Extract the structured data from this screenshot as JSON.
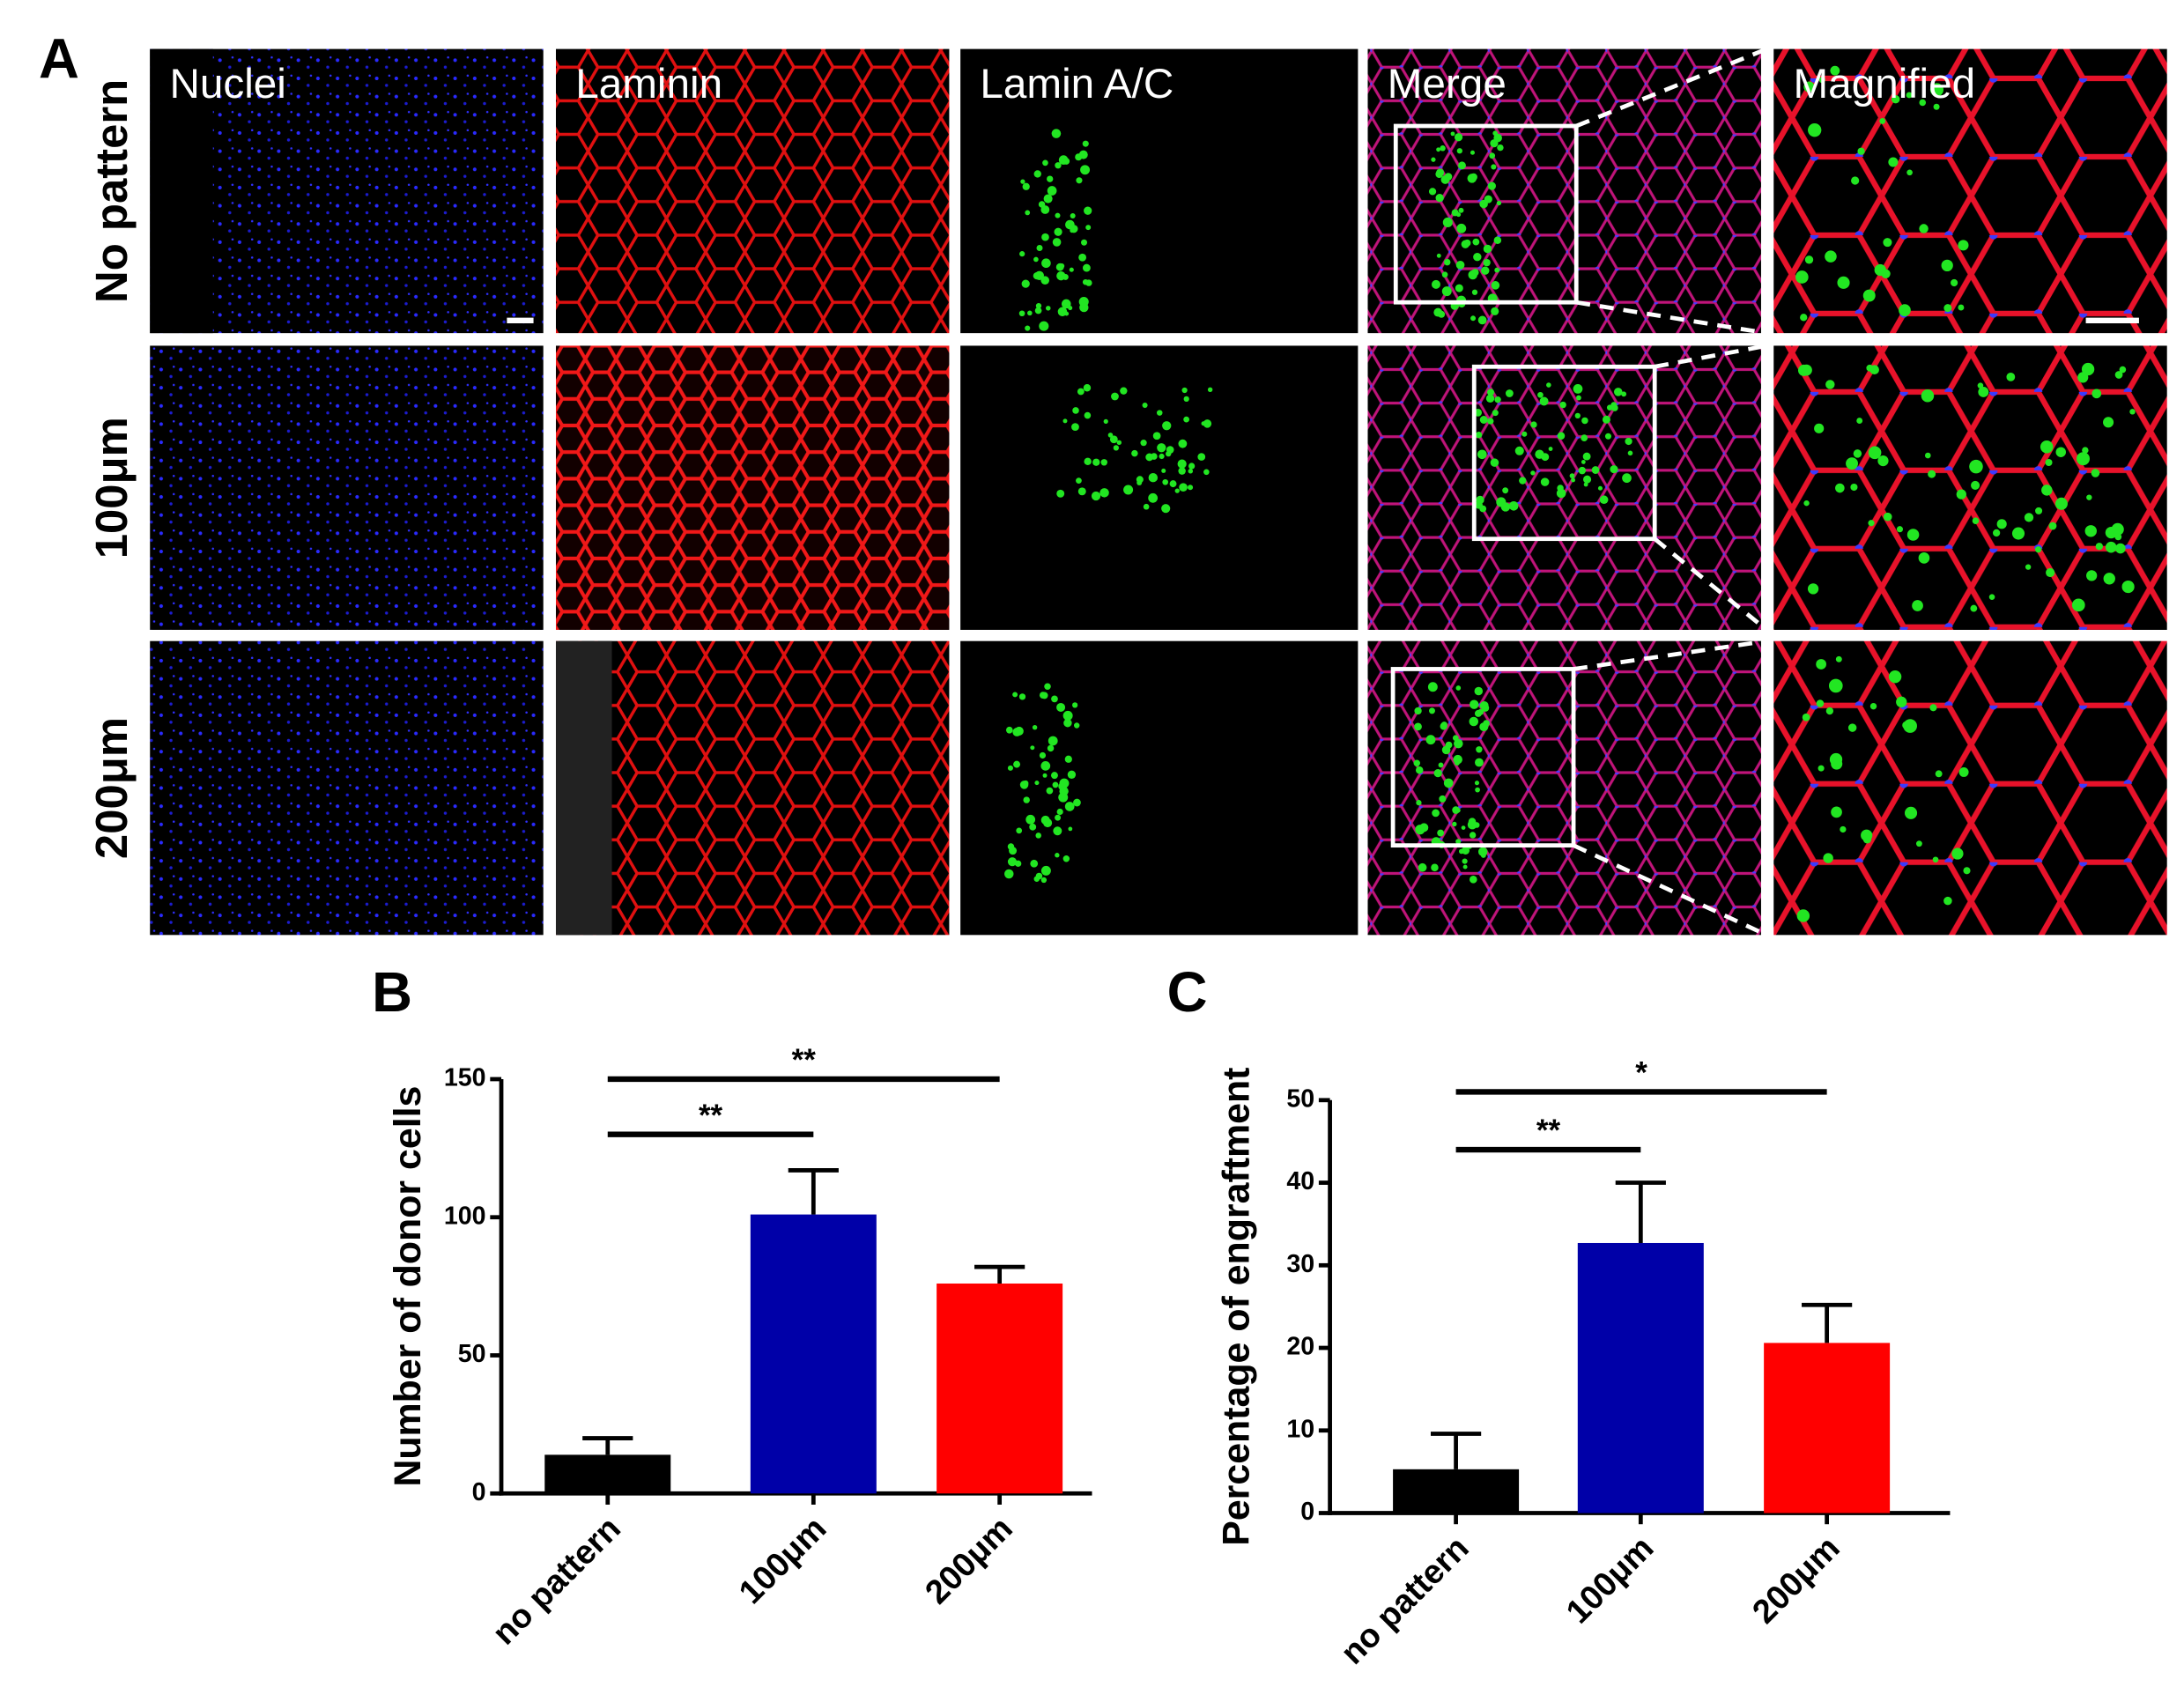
{
  "panel_a": {
    "panel_label": "A",
    "columns": [
      "Nuclei",
      "Laminin",
      "Lamin A/C",
      "Merge",
      "Magnified"
    ],
    "rows": [
      "No pattern",
      "100μm",
      "200μm"
    ]
  },
  "chart_data": [
    {
      "type": "bar",
      "panel_label": "B",
      "y_label": "Number of donor cells",
      "categories": [
        "no pattern",
        "100μm",
        "200μm"
      ],
      "colors": [
        "#000000",
        "#0000a8",
        "#ff0000"
      ],
      "values": [
        14,
        101,
        76
      ],
      "errors": [
        6,
        16,
        6
      ],
      "ylim": [
        0,
        150
      ],
      "yticks": [
        0,
        50,
        100,
        150
      ],
      "annotations": [
        {
          "text": "**",
          "from": 0,
          "to": 1,
          "y": 130
        },
        {
          "text": "**",
          "from": 0,
          "to": 2,
          "y": 150
        }
      ]
    },
    {
      "type": "bar",
      "panel_label": "C",
      "y_label": "Percentage of engraftment",
      "categories": [
        "no pattern",
        "100μm",
        "200μm"
      ],
      "colors": [
        "#000000",
        "#0000a8",
        "#ff0000"
      ],
      "values": [
        5.3,
        32.7,
        20.6
      ],
      "errors": [
        4.3,
        7.3,
        4.6
      ],
      "ylim": [
        0,
        50
      ],
      "yticks": [
        0,
        10,
        20,
        30,
        40,
        50
      ],
      "annotations": [
        {
          "text": "**",
          "from": 0,
          "to": 1,
          "y": 44
        },
        {
          "text": "*",
          "from": 0,
          "to": 2,
          "y": 51
        }
      ]
    }
  ]
}
